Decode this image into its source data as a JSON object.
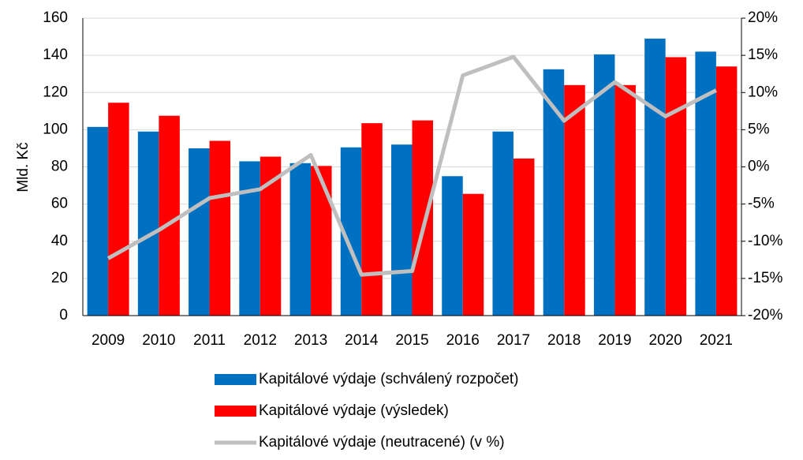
{
  "chart_data": {
    "type": "bar_line",
    "y_label": "Mld. Kč",
    "categories": [
      "2009",
      "2010",
      "2011",
      "2012",
      "2013",
      "2014",
      "2015",
      "2016",
      "2017",
      "2018",
      "2019",
      "2020",
      "2021"
    ],
    "series": [
      {
        "name": "Kapitálové výdaje (schválený rozpočet)",
        "color": "#0070c0",
        "type": "bar",
        "values": [
          101.5,
          99,
          90,
          83,
          82,
          90.5,
          92,
          75,
          99,
          132.5,
          140.5,
          149,
          142
        ]
      },
      {
        "name": "Kapitálové výdaje (výsledek)",
        "color": "#ff0000",
        "type": "bar",
        "values": [
          114.5,
          107.5,
          94,
          85.5,
          80.5,
          103.5,
          105,
          65.5,
          84.5,
          124,
          124,
          139,
          134
        ]
      },
      {
        "name": "Kapitálové výdaje (neutracené) (v %)",
        "color": "#bfbfbf",
        "type": "line",
        "axis": "y2",
        "values": [
          -12.3,
          -8.5,
          -4.2,
          -3,
          1.6,
          -14.5,
          -14,
          12.3,
          14.8,
          6.2,
          11.4,
          6.8,
          10.3
        ]
      }
    ],
    "ylim": [
      0,
      160
    ],
    "yticks": [
      0,
      20,
      40,
      60,
      80,
      100,
      120,
      140,
      160
    ],
    "y2lim": [
      -20,
      20
    ],
    "y2ticks": [
      {
        "value": -20,
        "label": "-20%"
      },
      {
        "value": -15,
        "label": "-15%"
      },
      {
        "value": -10,
        "label": "-10%"
      },
      {
        "value": -5,
        "label": "-5%"
      },
      {
        "value": 0,
        "label": "0%"
      },
      {
        "value": 5,
        "label": "5%"
      },
      {
        "value": 10,
        "label": "10%"
      },
      {
        "value": 15,
        "label": "15%"
      },
      {
        "value": 20,
        "label": "20%"
      }
    ],
    "grid": true
  }
}
